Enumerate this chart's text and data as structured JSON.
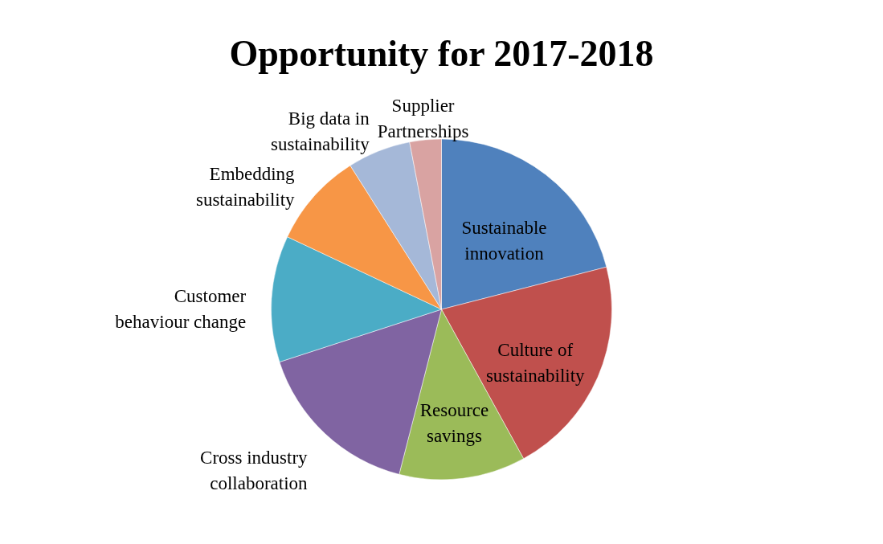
{
  "chart_data": {
    "type": "pie",
    "title": "Opportunity for 2017-2018",
    "categories": [
      "Sustainable innovation",
      "Culture of sustainability",
      "Resource savings",
      "Cross industry collaboration",
      "Customer behaviour change",
      "Embedding sustainability",
      "Big data in sustainability",
      "Supplier Partnerships"
    ],
    "values": [
      21,
      21,
      12,
      16,
      12,
      9,
      6,
      3
    ],
    "colors": [
      "#4f81bd",
      "#c0504d",
      "#9bbb59",
      "#8064a2",
      "#4bacc6",
      "#f79646",
      "#a5b8d8",
      "#d9a3a2"
    ],
    "legend": false
  }
}
